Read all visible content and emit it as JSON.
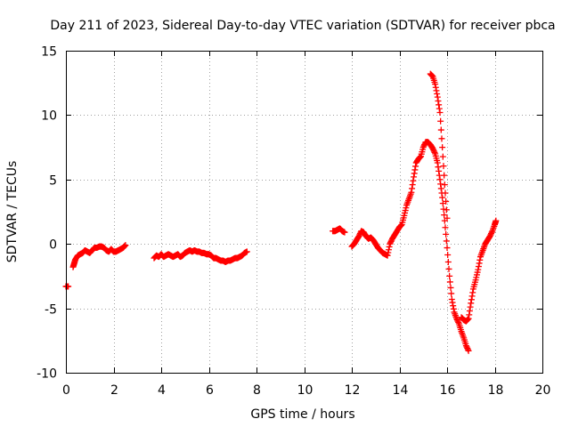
{
  "chart_data": {
    "type": "scatter",
    "title": "Day 211 of 2023, Sidereal Day-to-day VTEC variation (SDTVAR) for receiver pbca",
    "xlabel": "GPS time / hours",
    "ylabel": "SDTVAR / TECUs",
    "xlim": [
      0,
      20
    ],
    "ylim": [
      -10,
      15
    ],
    "x_ticks": [
      "0",
      "2",
      "4",
      "6",
      "8",
      "10",
      "12",
      "14",
      "16",
      "18",
      "20"
    ],
    "y_ticks": [
      "15",
      "10",
      "5",
      "0",
      "-5",
      "-10"
    ],
    "grid": true,
    "marker": "+",
    "series_color": "#ff0000",
    "series": [
      {
        "name": "segment-1",
        "x": [
          0.0,
          0.05,
          0.1
        ],
        "y": [
          -3.3,
          -3.3,
          -3.3
        ]
      },
      {
        "name": "segment-2",
        "x": [
          0.3,
          0.35,
          0.4,
          0.5,
          0.6,
          0.7,
          0.8,
          0.9,
          1.0,
          1.1,
          1.2,
          1.3,
          1.4,
          1.5,
          1.6,
          1.7,
          1.8,
          1.9,
          2.0,
          2.1,
          2.2,
          2.3,
          2.4,
          2.5
        ],
        "y": [
          -1.8,
          -1.5,
          -1.2,
          -0.9,
          -0.8,
          -0.7,
          -0.5,
          -0.6,
          -0.7,
          -0.5,
          -0.3,
          -0.3,
          -0.2,
          -0.2,
          -0.3,
          -0.5,
          -0.6,
          -0.4,
          -0.6,
          -0.6,
          -0.5,
          -0.4,
          -0.3,
          -0.1
        ]
      },
      {
        "name": "segment-3",
        "x": [
          3.7,
          3.8,
          3.9,
          4.0,
          4.1,
          4.2,
          4.3,
          4.4,
          4.5,
          4.6,
          4.7,
          4.8,
          4.9,
          5.0,
          5.1,
          5.2,
          5.3,
          5.4,
          5.5,
          5.6,
          5.7,
          5.8,
          5.9,
          6.0,
          6.1,
          6.2,
          6.3,
          6.4,
          6.5,
          6.6,
          6.7,
          6.8,
          6.9,
          7.0,
          7.1,
          7.2,
          7.3,
          7.4,
          7.5,
          7.6
        ],
        "y": [
          -1.1,
          -0.9,
          -1.0,
          -0.8,
          -1.0,
          -0.9,
          -0.8,
          -0.9,
          -1.0,
          -0.9,
          -0.8,
          -1.0,
          -0.9,
          -0.7,
          -0.6,
          -0.5,
          -0.6,
          -0.5,
          -0.6,
          -0.6,
          -0.7,
          -0.7,
          -0.8,
          -0.8,
          -0.9,
          -1.1,
          -1.1,
          -1.2,
          -1.3,
          -1.3,
          -1.4,
          -1.3,
          -1.3,
          -1.2,
          -1.1,
          -1.1,
          -1.0,
          -0.9,
          -0.7,
          -0.6
        ]
      },
      {
        "name": "segment-4",
        "x": [
          11.2,
          11.3,
          11.4,
          11.5,
          11.6,
          11.7
        ],
        "y": [
          1.0,
          1.0,
          1.1,
          1.2,
          1.0,
          0.9
        ]
      },
      {
        "name": "segment-5",
        "x": [
          12.0,
          12.1,
          12.2,
          12.3,
          12.4,
          12.5,
          12.6,
          12.7,
          12.8,
          12.9,
          13.0,
          13.1,
          13.2,
          13.3,
          13.4,
          13.5,
          13.6,
          13.7,
          13.8,
          13.9,
          14.0,
          14.1,
          14.2,
          14.3,
          14.4,
          14.5,
          14.6,
          14.7,
          14.8,
          14.9,
          15.0,
          15.1,
          15.2,
          15.3,
          15.4,
          15.5,
          15.6,
          15.7,
          15.8,
          15.9,
          16.0,
          16.1,
          16.2,
          16.3,
          16.4,
          16.5,
          16.6,
          16.7,
          16.8,
          16.9
        ],
        "y": [
          -0.2,
          0.0,
          0.3,
          0.6,
          1.0,
          0.9,
          0.6,
          0.4,
          0.5,
          0.3,
          0.0,
          -0.3,
          -0.5,
          -0.7,
          -0.8,
          -0.9,
          0.0,
          0.4,
          0.7,
          1.0,
          1.3,
          1.5,
          2.2,
          3.0,
          3.5,
          4.0,
          5.2,
          6.3,
          6.6,
          6.8,
          7.5,
          7.9,
          7.9,
          7.7,
          7.4,
          7.0,
          6.3,
          5.0,
          3.6,
          1.8,
          -0.3,
          -2.5,
          -4.3,
          -5.3,
          -5.8,
          -6.2,
          -6.8,
          -7.3,
          -7.9,
          -8.3
        ]
      },
      {
        "name": "segment-6",
        "x": [
          15.3,
          15.4,
          15.5,
          15.6,
          15.7,
          15.8,
          15.9,
          16.0
        ],
        "y": [
          13.2,
          13.0,
          12.4,
          11.4,
          10.2,
          7.5,
          4.6,
          2.0
        ]
      },
      {
        "name": "segment-7",
        "x": [
          16.6,
          16.7,
          16.8,
          16.9,
          17.0,
          17.1,
          17.2,
          17.3,
          17.4,
          17.5,
          17.6,
          17.7,
          17.8,
          17.9,
          18.0,
          18.05
        ],
        "y": [
          -5.7,
          -5.9,
          -6.0,
          -5.8,
          -4.6,
          -3.5,
          -2.8,
          -2.0,
          -1.0,
          -0.5,
          0.0,
          0.3,
          0.6,
          1.0,
          1.5,
          1.8
        ]
      }
    ]
  }
}
